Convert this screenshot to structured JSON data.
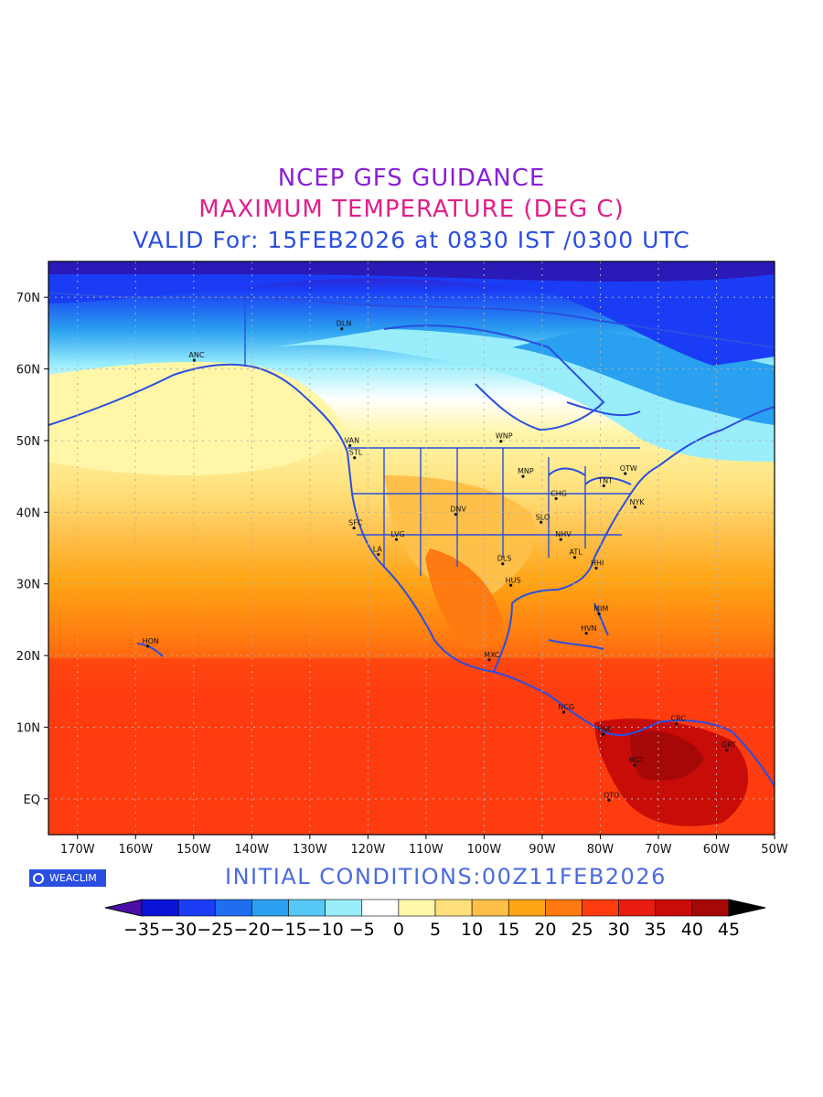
{
  "titles": {
    "line1": "NCEP GFS GUIDANCE",
    "line2": "MAXIMUM TEMPERATURE (DEG C)",
    "line3": "VALID For: 15FEB2026 at 0830 IST /0300 UTC"
  },
  "initial_conditions": "INITIAL CONDITIONS:00Z11FEB2026",
  "brand": "WEACLIM",
  "map": {
    "lon_ticks": [
      "170W",
      "160W",
      "150W",
      "140W",
      "130W",
      "120W",
      "110W",
      "100W",
      "90W",
      "80W",
      "70W",
      "60W",
      "50W"
    ],
    "lat_ticks": [
      "70N",
      "60N",
      "50N",
      "40N",
      "30N",
      "20N",
      "10N",
      "EQ"
    ],
    "coast_color": "#2a4ee0",
    "stations": [
      {
        "label": "DLN",
        "lon": -124.5,
        "lat": 65.6
      },
      {
        "label": "ANC",
        "lon": -149.9,
        "lat": 61.2
      },
      {
        "label": "VAN",
        "lon": -123.1,
        "lat": 49.3
      },
      {
        "label": "STL",
        "lon": -122.3,
        "lat": 47.6
      },
      {
        "label": "WNP",
        "lon": -97.1,
        "lat": 49.9
      },
      {
        "label": "MNP",
        "lon": -93.3,
        "lat": 45.0
      },
      {
        "label": "TNT",
        "lon": -79.4,
        "lat": 43.7
      },
      {
        "label": "OTW",
        "lon": -75.7,
        "lat": 45.4
      },
      {
        "label": "CHG",
        "lon": -87.6,
        "lat": 41.9
      },
      {
        "label": "NYK",
        "lon": -74.0,
        "lat": 40.7
      },
      {
        "label": "DNV",
        "lon": -104.9,
        "lat": 39.7
      },
      {
        "label": "SFC",
        "lon": -122.4,
        "lat": 37.8
      },
      {
        "label": "SLO",
        "lon": -90.2,
        "lat": 38.6
      },
      {
        "label": "LVG",
        "lon": -115.1,
        "lat": 36.2
      },
      {
        "label": "NHV",
        "lon": -86.8,
        "lat": 36.2
      },
      {
        "label": "LA",
        "lon": -118.2,
        "lat": 34.1
      },
      {
        "label": "ATL",
        "lon": -84.4,
        "lat": 33.7
      },
      {
        "label": "DLS",
        "lon": -96.8,
        "lat": 32.8
      },
      {
        "label": "HHI",
        "lon": -80.7,
        "lat": 32.2
      },
      {
        "label": "HUS",
        "lon": -95.4,
        "lat": 29.8
      },
      {
        "label": "MIM",
        "lon": -80.2,
        "lat": 25.8
      },
      {
        "label": "HVN",
        "lon": -82.4,
        "lat": 23.1
      },
      {
        "label": "HON",
        "lon": -157.9,
        "lat": 21.3
      },
      {
        "label": "MXC",
        "lon": -99.1,
        "lat": 19.4
      },
      {
        "label": "NCG",
        "lon": -86.3,
        "lat": 12.1
      },
      {
        "label": "CRC",
        "lon": -66.9,
        "lat": 10.5
      },
      {
        "label": "PNC",
        "lon": -79.5,
        "lat": 9.0
      },
      {
        "label": "GRT",
        "lon": -58.2,
        "lat": 6.8
      },
      {
        "label": "BGT",
        "lon": -74.1,
        "lat": 4.7
      },
      {
        "label": "QTO",
        "lon": -78.5,
        "lat": -0.2
      }
    ]
  },
  "colorbar": {
    "labels": [
      "-35",
      "-30",
      "-25",
      "-20",
      "-15",
      "-10",
      "-5",
      "0",
      "5",
      "10",
      "15",
      "20",
      "25",
      "30",
      "35",
      "40",
      "45"
    ],
    "colors": [
      "#4a0da8",
      "#0a14d6",
      "#1a3cf5",
      "#1f6ef0",
      "#2aa0f0",
      "#55c8f5",
      "#9aeefc",
      "#ffffff",
      "#fff6a8",
      "#ffe07a",
      "#ffc04a",
      "#ffa414",
      "#ff7a10",
      "#ff3c10",
      "#e81c10",
      "#c80c08",
      "#a60808",
      "#000000"
    ]
  }
}
